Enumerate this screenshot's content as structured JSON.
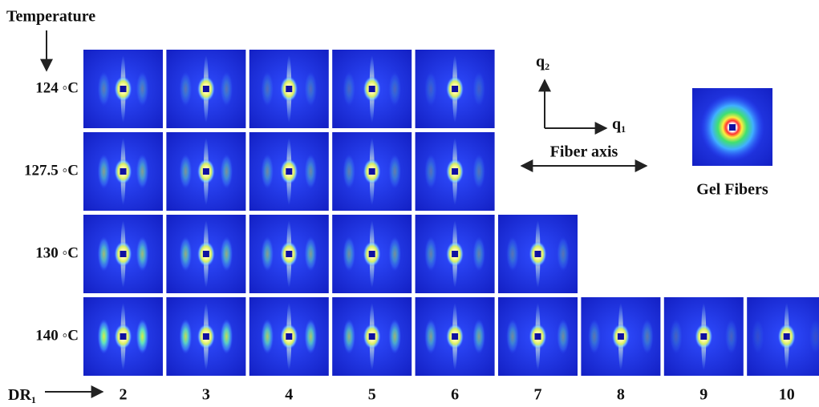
{
  "temperature_label": "Temperature",
  "rows": [
    {
      "label": "124 ◦C"
    },
    {
      "label": "127.5 ◦C"
    },
    {
      "label": "130 ◦C"
    },
    {
      "label": "140 ◦C"
    }
  ],
  "columns": [
    "2",
    "3",
    "4",
    "5",
    "6",
    "7",
    "8",
    "9",
    "10"
  ],
  "dr_label": {
    "base": "DR",
    "sub": "1"
  },
  "q2_label": {
    "base": "q",
    "sub": "2"
  },
  "q1_label": {
    "base": "q",
    "sub": "1"
  },
  "fiber_axis_label": "Fiber axis",
  "gel_fibers_label": "Gel Fibers"
}
